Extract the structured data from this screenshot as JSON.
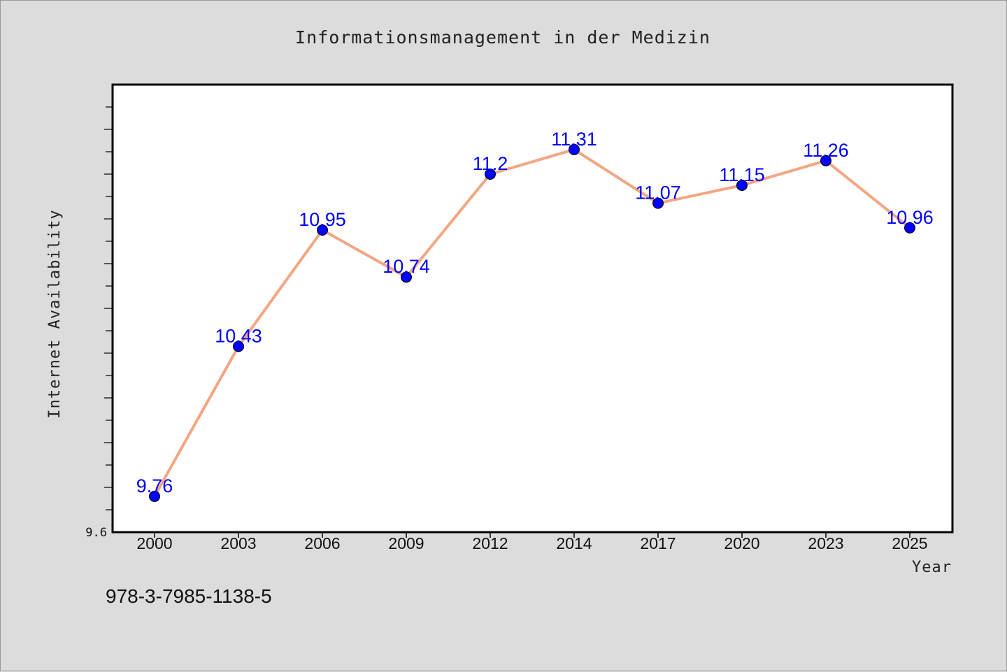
{
  "isbn_text": "978-3-7985-1138-5",
  "colors": {
    "background": "#dcdcdc",
    "plot_area": "#ffffff",
    "line": "#f4a582",
    "marker": "#0000ff",
    "data_label": "#0000ff"
  },
  "chart_data": {
    "type": "line",
    "title": "Informationsmanagement in der Medizin",
    "xlabel": "Year",
    "ylabel": "Internet Availability",
    "categories": [
      "2000",
      "2003",
      "2006",
      "2009",
      "2012",
      "2014",
      "2017",
      "2020",
      "2023",
      "2025"
    ],
    "series": [
      {
        "values": [
          9.76,
          10.43,
          10.95,
          10.74,
          11.2,
          11.31,
          11.07,
          11.15,
          11.26,
          10.96
        ]
      }
    ],
    "data_labels": [
      "9.76",
      "10.43",
      "10.95",
      "10.74",
      "11.2",
      "11.31",
      "11.07",
      "11.15",
      "11.26",
      "10.96"
    ],
    "y_tick_labels": [
      "9.6"
    ],
    "ylim": [
      9.6,
      11.6
    ],
    "y_minor_tick_step": 0.1,
    "grid": false,
    "legend": "none"
  }
}
